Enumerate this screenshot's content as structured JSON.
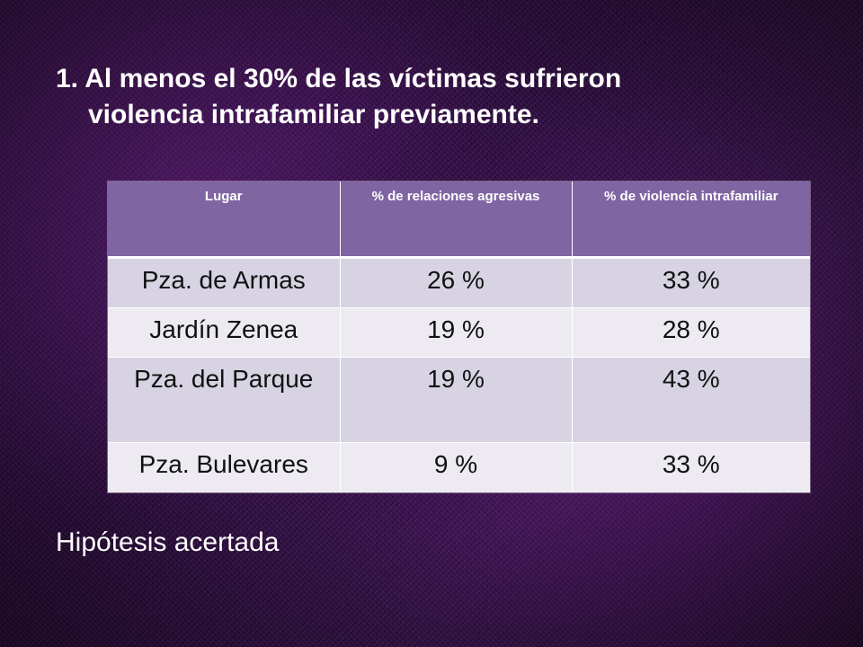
{
  "slide": {
    "title_line1": "1. Al menos el 30% de las víctimas sufrieron",
    "title_line2": "violencia intrafamiliar previamente.",
    "conclusion": "Hipótesis acertada"
  },
  "table": {
    "headers": [
      "Lugar",
      "% de relaciones agresivas",
      "% de violencia intrafamiliar"
    ],
    "rows": [
      [
        "Pza. de Armas",
        "26 %",
        "33 %"
      ],
      [
        "Jardín Zenea",
        "19 %",
        "28 %"
      ],
      [
        "Pza. del Parque",
        "19 %",
        "43 %"
      ],
      [
        "Pza. Bulevares",
        "9 %",
        "33 %"
      ]
    ]
  },
  "colors": {
    "background": "#2a0a3a",
    "header_bg": "#8065a3",
    "row_odd_bg": "#d8d3e3",
    "row_even_bg": "#edeaf2",
    "text_light": "#ffffff",
    "text_dark": "#111111"
  }
}
